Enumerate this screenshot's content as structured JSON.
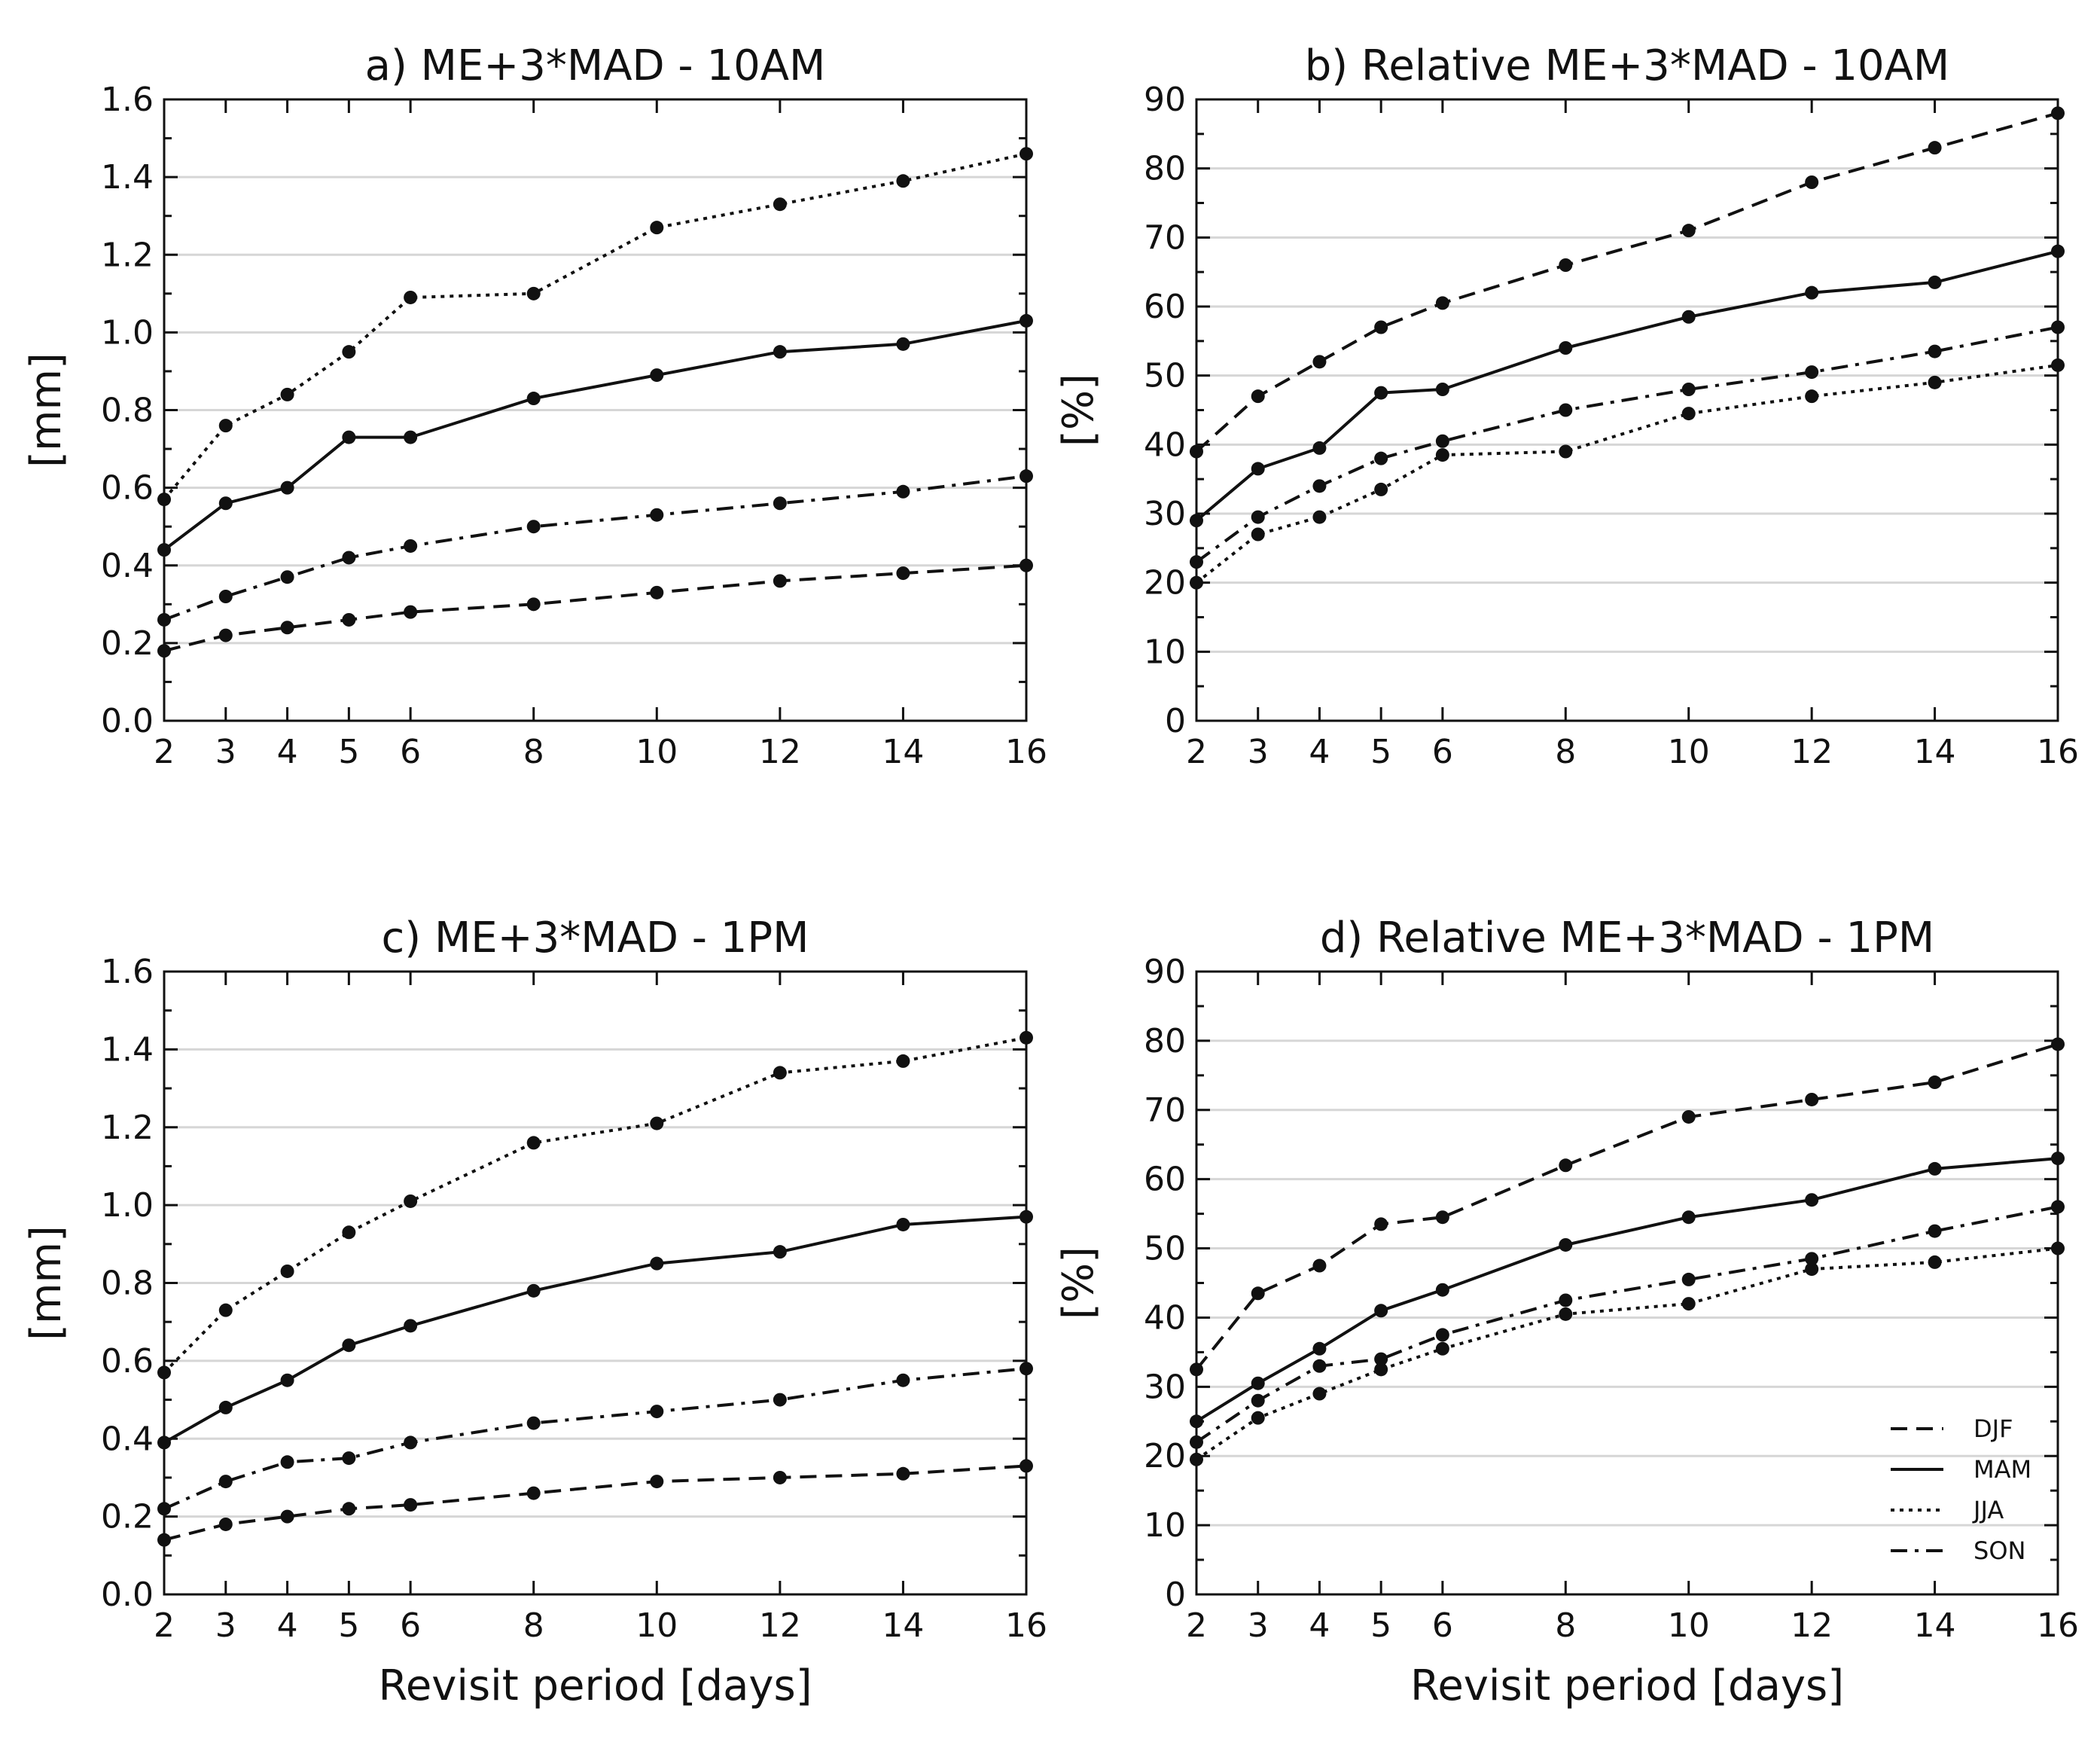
{
  "chart_data": [
    {
      "type": "line",
      "title": "a) ME+3*MAD - 10AM",
      "xlabel": "",
      "ylabel": "[mm]",
      "xlim": [
        2,
        16
      ],
      "ylim": [
        0,
        1.6
      ],
      "xticks": [
        2,
        3,
        4,
        5,
        6,
        8,
        10,
        12,
        14,
        16
      ],
      "yticks": [
        0.0,
        0.2,
        0.4,
        0.6,
        0.8,
        1.0,
        1.2,
        1.4,
        1.6
      ],
      "ytick_labels": [
        "0.0",
        "0.2",
        "0.4",
        "0.6",
        "0.8",
        "1.0",
        "1.2",
        "1.4",
        "1.6"
      ],
      "x": [
        2,
        3,
        4,
        5,
        6,
        8,
        10,
        12,
        14,
        16
      ],
      "series": [
        {
          "name": "DJF",
          "style": "dashed",
          "values": [
            0.18,
            0.22,
            0.24,
            0.26,
            0.28,
            0.3,
            0.33,
            0.36,
            0.38,
            0.4
          ]
        },
        {
          "name": "MAM",
          "style": "solid",
          "values": [
            0.44,
            0.56,
            0.6,
            0.73,
            0.73,
            0.83,
            0.89,
            0.95,
            0.97,
            1.03
          ]
        },
        {
          "name": "JJA",
          "style": "dotted",
          "values": [
            0.57,
            0.76,
            0.84,
            0.95,
            1.09,
            1.1,
            1.27,
            1.33,
            1.39,
            1.46
          ]
        },
        {
          "name": "SON",
          "style": "dashdot",
          "values": [
            0.26,
            0.32,
            0.37,
            0.42,
            0.45,
            0.5,
            0.53,
            0.56,
            0.59,
            0.63
          ]
        }
      ]
    },
    {
      "type": "line",
      "title": "b) Relative ME+3*MAD - 10AM",
      "xlabel": "",
      "ylabel": "[%]",
      "xlim": [
        2,
        16
      ],
      "ylim": [
        0,
        90
      ],
      "xticks": [
        2,
        3,
        4,
        5,
        6,
        8,
        10,
        12,
        14,
        16
      ],
      "yticks": [
        0,
        10,
        20,
        30,
        40,
        50,
        60,
        70,
        80,
        90
      ],
      "ytick_labels": [
        "0",
        "10",
        "20",
        "30",
        "40",
        "50",
        "60",
        "70",
        "80",
        "90"
      ],
      "x": [
        2,
        3,
        4,
        5,
        6,
        8,
        10,
        12,
        14,
        16
      ],
      "series": [
        {
          "name": "DJF",
          "style": "dashed",
          "values": [
            39,
            47,
            52,
            57,
            60.5,
            66,
            71,
            78,
            83,
            88
          ]
        },
        {
          "name": "MAM",
          "style": "solid",
          "values": [
            29,
            36.5,
            39.5,
            47.5,
            48,
            54,
            58.5,
            62,
            63.5,
            68
          ]
        },
        {
          "name": "JJA",
          "style": "dotted",
          "values": [
            20,
            27,
            29.5,
            33.5,
            38.5,
            39,
            44.5,
            47,
            49,
            51.5
          ]
        },
        {
          "name": "SON",
          "style": "dashdot",
          "values": [
            23,
            29.5,
            34,
            38,
            40.5,
            45,
            48,
            50.5,
            53.5,
            57
          ]
        }
      ]
    },
    {
      "type": "line",
      "title": "c) ME+3*MAD - 1PM",
      "xlabel": "Revisit period [days]",
      "ylabel": "[mm]",
      "xlim": [
        2,
        16
      ],
      "ylim": [
        0,
        1.6
      ],
      "xticks": [
        2,
        3,
        4,
        5,
        6,
        8,
        10,
        12,
        14,
        16
      ],
      "yticks": [
        0.0,
        0.2,
        0.4,
        0.6,
        0.8,
        1.0,
        1.2,
        1.4,
        1.6
      ],
      "ytick_labels": [
        "0.0",
        "0.2",
        "0.4",
        "0.6",
        "0.8",
        "1.0",
        "1.2",
        "1.4",
        "1.6"
      ],
      "x": [
        2,
        3,
        4,
        5,
        6,
        8,
        10,
        12,
        14,
        16
      ],
      "series": [
        {
          "name": "DJF",
          "style": "dashed",
          "values": [
            0.14,
            0.18,
            0.2,
            0.22,
            0.23,
            0.26,
            0.29,
            0.3,
            0.31,
            0.33
          ]
        },
        {
          "name": "MAM",
          "style": "solid",
          "values": [
            0.39,
            0.48,
            0.55,
            0.64,
            0.69,
            0.78,
            0.85,
            0.88,
            0.95,
            0.97
          ]
        },
        {
          "name": "JJA",
          "style": "dotted",
          "values": [
            0.57,
            0.73,
            0.83,
            0.93,
            1.01,
            1.16,
            1.21,
            1.34,
            1.37,
            1.43
          ]
        },
        {
          "name": "SON",
          "style": "dashdot",
          "values": [
            0.22,
            0.29,
            0.34,
            0.35,
            0.39,
            0.44,
            0.47,
            0.5,
            0.55,
            0.58
          ]
        }
      ]
    },
    {
      "type": "line",
      "title": "d) Relative ME+3*MAD - 1PM",
      "xlabel": "Revisit period [days]",
      "ylabel": "[%]",
      "xlim": [
        2,
        16
      ],
      "ylim": [
        0,
        90
      ],
      "xticks": [
        2,
        3,
        4,
        5,
        6,
        8,
        10,
        12,
        14,
        16
      ],
      "yticks": [
        0,
        10,
        20,
        30,
        40,
        50,
        60,
        70,
        80,
        90
      ],
      "ytick_labels": [
        "0",
        "10",
        "20",
        "30",
        "40",
        "50",
        "60",
        "70",
        "80",
        "90"
      ],
      "x": [
        2,
        3,
        4,
        5,
        6,
        8,
        10,
        12,
        14,
        16
      ],
      "legend": {
        "position": "lower-right",
        "entries": [
          "DJF",
          "MAM",
          "JJA",
          "SON"
        ]
      },
      "series": [
        {
          "name": "DJF",
          "style": "dashed",
          "values": [
            32.5,
            43.5,
            47.5,
            53.5,
            54.5,
            62,
            69,
            71.5,
            74,
            79.5
          ]
        },
        {
          "name": "MAM",
          "style": "solid",
          "values": [
            25,
            30.5,
            35.5,
            41,
            44,
            50.5,
            54.5,
            57,
            61.5,
            63
          ]
        },
        {
          "name": "JJA",
          "style": "dotted",
          "values": [
            19.5,
            25.5,
            29,
            32.5,
            35.5,
            40.5,
            42,
            47,
            48,
            50
          ]
        },
        {
          "name": "SON",
          "style": "dashdot",
          "values": [
            22,
            28,
            33,
            34,
            37.5,
            42.5,
            45.5,
            48.5,
            52.5,
            56
          ]
        }
      ]
    }
  ]
}
